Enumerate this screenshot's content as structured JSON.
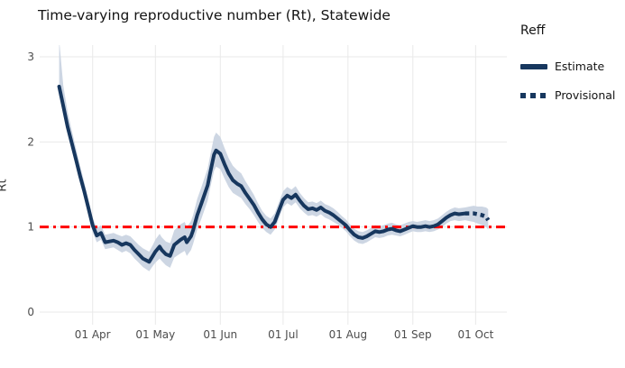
{
  "figure": {
    "title": "Time-varying reproductive number (Rt), Statewide"
  },
  "legend": {
    "title": "Reff",
    "items": [
      {
        "label": "Estimate",
        "style": "solid"
      },
      {
        "label": "Provisional",
        "style": "dotted"
      }
    ]
  },
  "axes": {
    "y_label": "Rt",
    "y_ticks": [
      "0",
      "1",
      "2",
      "3"
    ],
    "x_ticks": [
      "01 Apr",
      "01 May",
      "01 Jun",
      "01 Jul",
      "01 Aug",
      "01 Sep",
      "01 Oct"
    ]
  },
  "colors": {
    "estimate_line": "#17375e",
    "confidence_band": "#cdd6e3",
    "reference_line": "#ff0000",
    "gridline": "#e9e9e9",
    "tick_text": "#4d4d4d",
    "title_text": "#141414"
  },
  "chart_data": {
    "type": "line",
    "title": "Time-varying reproductive number (Rt), Statewide",
    "xlabel": "",
    "ylabel": "Rt",
    "ylim": [
      0,
      3.2
    ],
    "yticks": [
      0,
      1,
      2,
      3
    ],
    "xticks": [
      "01 Apr",
      "01 May",
      "01 Jun",
      "01 Jul",
      "01 Aug",
      "01 Sep",
      "01 Oct"
    ],
    "tick_dates": [
      "Apr 1",
      "May 1",
      "Jun 1",
      "Jul 1",
      "Aug 1",
      "Sep 1",
      "Oct 1"
    ],
    "grid": true,
    "legend_position": "right",
    "reference_line": {
      "y": 1.0,
      "style": "dash-dot",
      "color": "#ff0000"
    },
    "points_format": [
      "date",
      "rt",
      "lower",
      "upper"
    ],
    "series": [
      {
        "name": "Estimate",
        "style": "solid",
        "points": [
          [
            "Mar 16",
            2.65,
            2.55,
            3.2
          ],
          [
            "Mar 18",
            2.42,
            2.33,
            2.66
          ],
          [
            "Mar 20",
            2.18,
            2.1,
            2.36
          ],
          [
            "Mar 22",
            1.99,
            1.91,
            2.14
          ],
          [
            "Mar 24",
            1.8,
            1.72,
            1.93
          ],
          [
            "Mar 26",
            1.6,
            1.52,
            1.72
          ],
          [
            "Mar 28",
            1.42,
            1.34,
            1.53
          ],
          [
            "Mar 30",
            1.22,
            1.14,
            1.32
          ],
          [
            "Apr 1",
            1.02,
            0.94,
            1.11
          ],
          [
            "Apr 3",
            0.9,
            0.82,
            0.99
          ],
          [
            "Apr 5",
            0.93,
            0.85,
            1.02
          ],
          [
            "Apr 7",
            0.82,
            0.74,
            0.91
          ],
          [
            "Apr 9",
            0.83,
            0.75,
            0.92
          ],
          [
            "Apr 11",
            0.84,
            0.76,
            0.93
          ],
          [
            "Apr 13",
            0.82,
            0.73,
            0.91
          ],
          [
            "Apr 15",
            0.79,
            0.7,
            0.89
          ],
          [
            "Apr 17",
            0.81,
            0.72,
            0.91
          ],
          [
            "Apr 19",
            0.79,
            0.69,
            0.89
          ],
          [
            "Apr 21",
            0.73,
            0.63,
            0.84
          ],
          [
            "Apr 23",
            0.68,
            0.58,
            0.79
          ],
          [
            "Apr 25",
            0.63,
            0.53,
            0.75
          ],
          [
            "Apr 28",
            0.59,
            0.48,
            0.71
          ],
          [
            "Apr 30",
            0.67,
            0.55,
            0.8
          ],
          [
            "May 1",
            0.71,
            0.58,
            0.85
          ],
          [
            "May 3",
            0.77,
            0.63,
            0.92
          ],
          [
            "May 4",
            0.73,
            0.6,
            0.88
          ],
          [
            "May 6",
            0.68,
            0.55,
            0.83
          ],
          [
            "May 8",
            0.66,
            0.52,
            0.81
          ],
          [
            "May 10",
            0.79,
            0.64,
            0.96
          ],
          [
            "May 13",
            0.85,
            0.69,
            1.03
          ],
          [
            "May 15",
            0.88,
            0.72,
            1.06
          ],
          [
            "May 16",
            0.82,
            0.66,
            1.0
          ],
          [
            "May 18",
            0.89,
            0.73,
            1.07
          ],
          [
            "May 19",
            0.96,
            0.8,
            1.14
          ],
          [
            "May 21",
            1.14,
            0.97,
            1.33
          ],
          [
            "May 23",
            1.28,
            1.1,
            1.47
          ],
          [
            "May 26",
            1.49,
            1.31,
            1.69
          ],
          [
            "May 27",
            1.62,
            1.44,
            1.82
          ],
          [
            "May 29",
            1.85,
            1.66,
            2.06
          ],
          [
            "May 30",
            1.9,
            1.71,
            2.11
          ],
          [
            "Jun 1",
            1.86,
            1.68,
            2.06
          ],
          [
            "Jun 3",
            1.74,
            1.57,
            1.93
          ],
          [
            "Jun 5",
            1.63,
            1.47,
            1.81
          ],
          [
            "Jun 7",
            1.55,
            1.4,
            1.72
          ],
          [
            "Jun 9",
            1.51,
            1.37,
            1.67
          ],
          [
            "Jun 11",
            1.48,
            1.34,
            1.63
          ],
          [
            "Jun 13",
            1.4,
            1.27,
            1.54
          ],
          [
            "Jun 15",
            1.33,
            1.21,
            1.46
          ],
          [
            "Jun 17",
            1.26,
            1.14,
            1.38
          ],
          [
            "Jun 19",
            1.17,
            1.06,
            1.28
          ],
          [
            "Jun 21",
            1.09,
            0.99,
            1.19
          ],
          [
            "Jun 23",
            1.03,
            0.94,
            1.13
          ],
          [
            "Jun 25",
            1.0,
            0.91,
            1.1
          ],
          [
            "Jun 27",
            1.06,
            0.97,
            1.16
          ],
          [
            "Jun 29",
            1.19,
            1.1,
            1.29
          ],
          [
            "Jul 1",
            1.32,
            1.23,
            1.42
          ],
          [
            "Jul 3",
            1.37,
            1.28,
            1.47
          ],
          [
            "Jul 5",
            1.34,
            1.25,
            1.44
          ],
          [
            "Jul 7",
            1.38,
            1.29,
            1.48
          ],
          [
            "Jul 9",
            1.31,
            1.22,
            1.4
          ],
          [
            "Jul 11",
            1.25,
            1.17,
            1.34
          ],
          [
            "Jul 13",
            1.21,
            1.13,
            1.29
          ],
          [
            "Jul 15",
            1.22,
            1.14,
            1.3
          ],
          [
            "Jul 17",
            1.2,
            1.12,
            1.28
          ],
          [
            "Jul 19",
            1.23,
            1.15,
            1.31
          ],
          [
            "Jul 21",
            1.19,
            1.11,
            1.27
          ],
          [
            "Jul 23",
            1.17,
            1.09,
            1.25
          ],
          [
            "Jul 25",
            1.14,
            1.06,
            1.22
          ],
          [
            "Jul 27",
            1.1,
            1.03,
            1.18
          ],
          [
            "Jul 29",
            1.06,
            0.99,
            1.13
          ],
          [
            "Jul 31",
            1.02,
            0.95,
            1.09
          ],
          [
            "Aug 2",
            0.96,
            0.89,
            1.03
          ],
          [
            "Aug 4",
            0.91,
            0.84,
            0.98
          ],
          [
            "Aug 6",
            0.88,
            0.81,
            0.95
          ],
          [
            "Aug 8",
            0.87,
            0.8,
            0.94
          ],
          [
            "Aug 10",
            0.89,
            0.82,
            0.96
          ],
          [
            "Aug 12",
            0.92,
            0.85,
            0.99
          ],
          [
            "Aug 14",
            0.95,
            0.88,
            1.02
          ],
          [
            "Aug 16",
            0.94,
            0.87,
            1.01
          ],
          [
            "Aug 18",
            0.95,
            0.88,
            1.02
          ],
          [
            "Aug 20",
            0.97,
            0.9,
            1.04
          ],
          [
            "Aug 22",
            0.98,
            0.91,
            1.05
          ],
          [
            "Aug 24",
            0.96,
            0.9,
            1.03
          ],
          [
            "Aug 26",
            0.95,
            0.89,
            1.02
          ],
          [
            "Aug 28",
            0.97,
            0.91,
            1.04
          ],
          [
            "Aug 30",
            0.99,
            0.93,
            1.06
          ],
          [
            "Sep 1",
            1.01,
            0.95,
            1.07
          ],
          [
            "Sep 3",
            1.0,
            0.94,
            1.06
          ],
          [
            "Sep 5",
            1.0,
            0.94,
            1.07
          ],
          [
            "Sep 7",
            1.01,
            0.95,
            1.08
          ],
          [
            "Sep 9",
            1.0,
            0.94,
            1.07
          ],
          [
            "Sep 11",
            1.01,
            0.95,
            1.08
          ],
          [
            "Sep 13",
            1.03,
            0.97,
            1.1
          ],
          [
            "Sep 15",
            1.07,
            1.0,
            1.14
          ],
          [
            "Sep 17",
            1.11,
            1.04,
            1.18
          ],
          [
            "Sep 19",
            1.14,
            1.07,
            1.21
          ],
          [
            "Sep 21",
            1.16,
            1.08,
            1.23
          ],
          [
            "Sep 23",
            1.15,
            1.07,
            1.22
          ],
          [
            "Sep 26",
            1.16,
            1.08,
            1.23
          ]
        ]
      },
      {
        "name": "Provisional",
        "style": "dotted",
        "points": [
          [
            "Sep 26",
            1.16,
            1.08,
            1.23
          ],
          [
            "Sep 28",
            1.16,
            1.07,
            1.24
          ],
          [
            "Sep 30",
            1.16,
            1.06,
            1.25
          ],
          [
            "Oct 2",
            1.15,
            1.04,
            1.24
          ],
          [
            "Oct 4",
            1.14,
            1.02,
            1.24
          ],
          [
            "Oct 6",
            1.12,
            1.0,
            1.23
          ],
          [
            "Oct 7",
            1.08,
            0.97,
            1.21
          ]
        ]
      }
    ]
  }
}
